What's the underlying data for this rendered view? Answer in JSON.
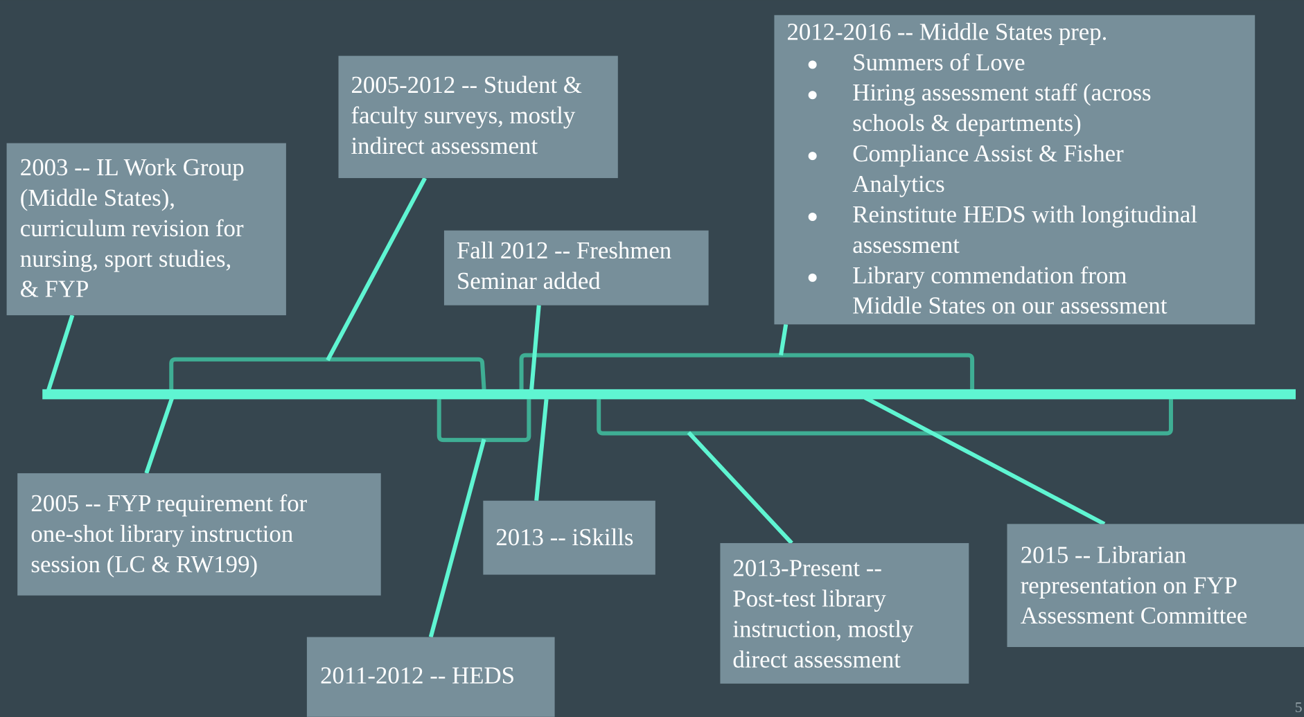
{
  "events": [
    {
      "lines": [
        "2003 -- IL Work Group",
        "(Middle States),",
        "curriculum revision for",
        "nursing, sport studies,",
        "& FYP"
      ]
    },
    {
      "lines": [
        "2005-2012 -- Student &",
        "faculty surveys, mostly",
        "indirect assessment"
      ]
    },
    {
      "lines": [
        "Fall 2012 -- Freshmen",
        "Seminar added"
      ]
    },
    {
      "lines": [
        "2012-2016 -- Middle States prep."
      ],
      "bullets": [
        [
          "Summers of Love"
        ],
        [
          "Hiring assessment staff (across",
          "schools & departments)"
        ],
        [
          "Compliance Assist & Fisher",
          "Analytics"
        ],
        [
          "Reinstitute HEDS with longitudinal",
          "assessment"
        ],
        [
          "Library commendation from",
          "Middle States on our assessment"
        ]
      ]
    },
    {
      "lines": [
        "2005 -- FYP requirement for",
        "one-shot library instruction",
        "session (LC & RW199)"
      ]
    },
    {
      "lines": [
        "2013 -- iSkills"
      ]
    },
    {
      "lines": [
        "2011-2012 -- HEDS"
      ]
    },
    {
      "lines": [
        "2013-Present --",
        "Post-test library",
        "instruction, mostly",
        "direct assessment"
      ]
    },
    {
      "lines": [
        "2015 -- Librarian",
        "representation on FYP",
        "Assessment Committee"
      ]
    }
  ],
  "slide_number": "5"
}
